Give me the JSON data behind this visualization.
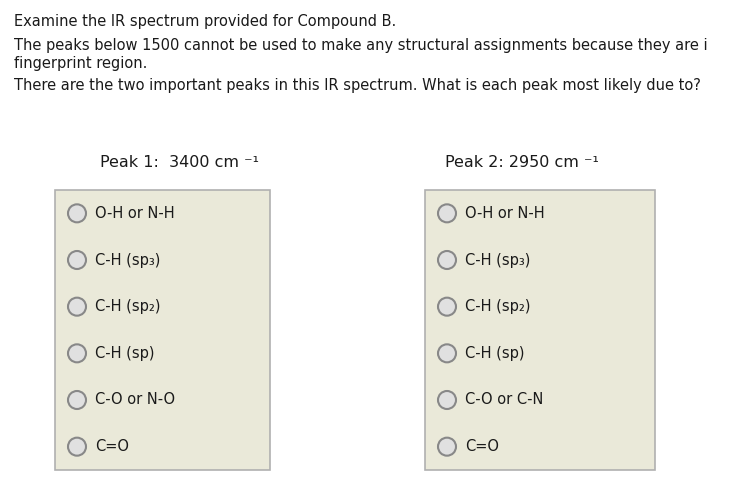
{
  "background_color": "#ffffff",
  "text_color": "#1a1a1a",
  "line1": "Examine the IR spectrum provided for Compound B.",
  "line2": "The peaks below 1500 cannot be used to make any structural assignments because they are i",
  "line2b": "fingerprint region.",
  "line3": "There are the two important peaks in this IR spectrum. What is each peak most likely due to?",
  "peak1_label": "Peak 1:  3400 cm ⁻¹",
  "peak2_label": "Peak 2: 2950 cm ⁻¹",
  "box1_options": [
    "O-H or N-H",
    "C-H (sp₃)",
    "C-H (sp₂)",
    "C-H (sp)",
    "C-O or N-O",
    "C=O"
  ],
  "box2_options": [
    "O-H or N-H",
    "C-H (sp₃)",
    "C-H (sp₂)",
    "C-H (sp)",
    "C-O or C-N",
    "C=O"
  ],
  "box_bg": "#eae9d9",
  "box_border": "#b0b0b0",
  "font_size_body": 10.5,
  "font_size_peak": 11.5,
  "font_size_option": 10.5,
  "circle_color": "#888888",
  "circle_fill": "#e0e0e0"
}
